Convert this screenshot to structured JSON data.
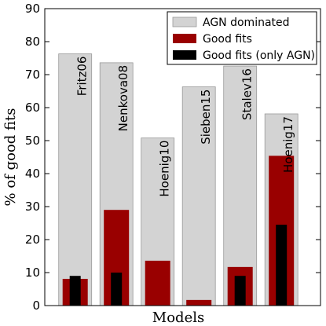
{
  "chart_data": {
    "type": "bar",
    "title": "",
    "xlabel": "Models",
    "ylabel": "% of good fits",
    "ylim": [
      0,
      90
    ],
    "yticks": [
      0,
      10,
      20,
      30,
      40,
      50,
      60,
      70,
      80,
      90
    ],
    "categories": [
      "Fritz06",
      "Nenkova08",
      "Hoenig10",
      "Sieben15",
      "Stalev16",
      "Hoenig17"
    ],
    "series": [
      {
        "name": "AGN dominated",
        "color": "#d3d3d3",
        "values": [
          76.3,
          73.6,
          50.8,
          66.3,
          72.6,
          58.1
        ]
      },
      {
        "name": "Good fits",
        "color": "#990000",
        "values": [
          8.1,
          29.0,
          13.6,
          1.7,
          11.7,
          45.4
        ]
      },
      {
        "name": "Good fits (only AGN)",
        "color": "#000000",
        "values": [
          9.0,
          10.0,
          null,
          null,
          9.0,
          24.5
        ]
      }
    ],
    "legend": "top-right",
    "grid": false
  }
}
